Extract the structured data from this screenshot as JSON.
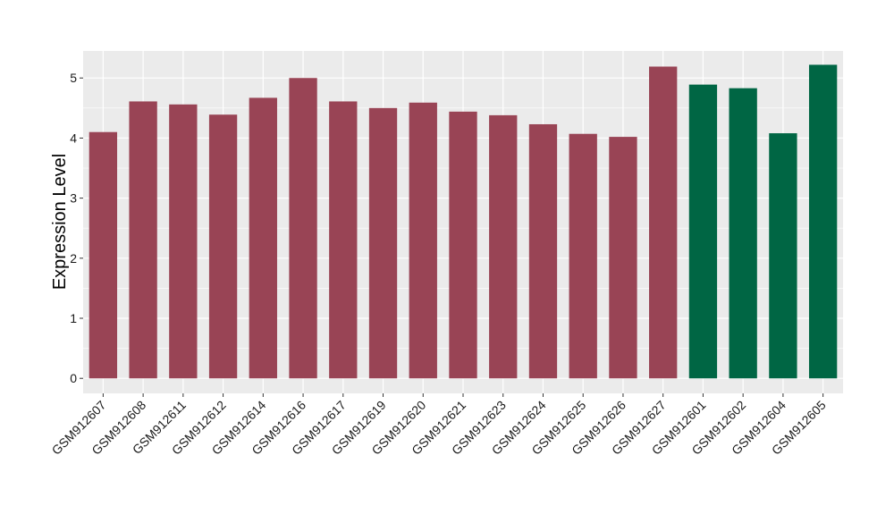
{
  "colors": {
    "panel_background": "#EBEBEB",
    "gridline": "#FFFFFF",
    "tick": "#333333"
  },
  "chart_data": {
    "type": "bar",
    "title": "",
    "xlabel": "",
    "ylabel": "Expression Level",
    "ylim": [
      -0.25,
      5.45
    ],
    "yticks": [
      0,
      1,
      2,
      3,
      4,
      5
    ],
    "grid": true,
    "legend": "none",
    "categories": [
      "GSM912607",
      "GSM912608",
      "GSM912611",
      "GSM912612",
      "GSM912614",
      "GSM912616",
      "GSM912617",
      "GSM912619",
      "GSM912620",
      "GSM912621",
      "GSM912623",
      "GSM912624",
      "GSM912625",
      "GSM912626",
      "GSM912627",
      "GSM912601",
      "GSM912602",
      "GSM912604",
      "GSM912605"
    ],
    "values": [
      4.1,
      4.61,
      4.56,
      4.39,
      4.67,
      5.0,
      4.61,
      4.5,
      4.59,
      4.44,
      4.38,
      4.23,
      4.07,
      4.02,
      5.19,
      4.89,
      4.83,
      4.08,
      5.22
    ],
    "bar_colors": [
      "#994455",
      "#994455",
      "#994455",
      "#994455",
      "#994455",
      "#994455",
      "#994455",
      "#994455",
      "#994455",
      "#994455",
      "#994455",
      "#994455",
      "#994455",
      "#994455",
      "#994455",
      "#006644",
      "#006644",
      "#006644",
      "#006644"
    ]
  }
}
